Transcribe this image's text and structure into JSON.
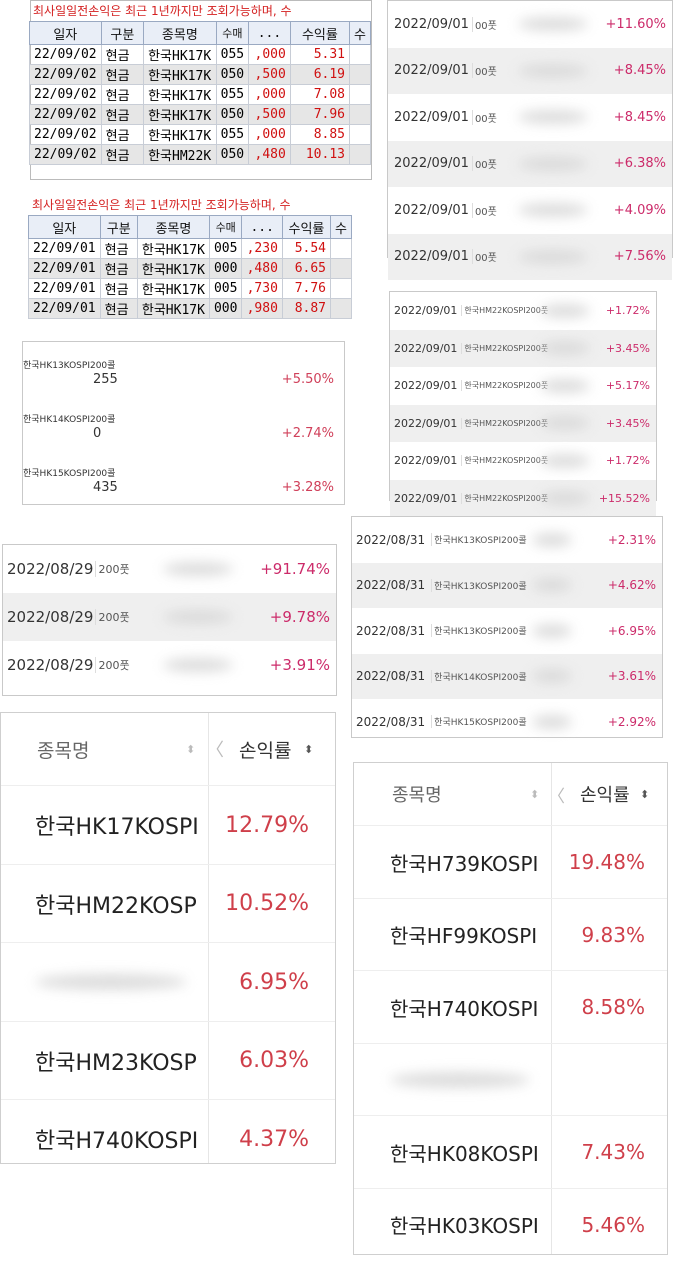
{
  "panel_a": {
    "warning": "최사일일전손익은 최근 1년까지만 조회가능하며, 수",
    "headers": [
      "일자",
      "구분",
      "종목명",
      "수매",
      "...",
      "수익률",
      "수"
    ],
    "rows": [
      {
        "date": "22/09/02",
        "type": "현금",
        "name": "한국HK17K",
        "q": "055",
        "amt": ",000",
        "rate": "5.31"
      },
      {
        "date": "22/09/02",
        "type": "현금",
        "name": "한국HK17K",
        "q": "050",
        "amt": ",500",
        "rate": "6.19"
      },
      {
        "date": "22/09/02",
        "type": "현금",
        "name": "한국HK17K",
        "q": "055",
        "amt": ",000",
        "rate": "7.08"
      },
      {
        "date": "22/09/02",
        "type": "현금",
        "name": "한국HK17K",
        "q": "050",
        "amt": ",500",
        "rate": "7.96"
      },
      {
        "date": "22/09/02",
        "type": "현금",
        "name": "한국HK17K",
        "q": "055",
        "amt": ",000",
        "rate": "8.85"
      },
      {
        "date": "22/09/02",
        "type": "현금",
        "name": "한국HM22K",
        "q": "050",
        "amt": ",480",
        "rate": "10.13"
      }
    ]
  },
  "panel_b": {
    "warning": "최사일일전손익은 최근 1년까지만 조회가능하며, 수",
    "headers": [
      "일자",
      "구분",
      "종목명",
      "수매",
      "...",
      "수익률",
      "수"
    ],
    "rows": [
      {
        "date": "22/09/01",
        "type": "현금",
        "name": "한국HK17K",
        "q": "005",
        "amt": ",230",
        "rate": "5.54"
      },
      {
        "date": "22/09/01",
        "type": "현금",
        "name": "한국HK17K",
        "q": "000",
        "amt": ",480",
        "rate": "6.65"
      },
      {
        "date": "22/09/01",
        "type": "현금",
        "name": "한국HK17K",
        "q": "005",
        "amt": ",730",
        "rate": "7.76"
      },
      {
        "date": "22/09/01",
        "type": "현금",
        "name": "한국HK17K",
        "q": "000",
        "amt": ",980",
        "rate": "8.87"
      }
    ]
  },
  "panel_c": {
    "rows": [
      {
        "date": "2022/09/01",
        "tag": "00풋",
        "pct": "+11.60%"
      },
      {
        "date": "2022/09/01",
        "tag": "00풋",
        "pct": "+8.45%"
      },
      {
        "date": "2022/09/01",
        "tag": "00풋",
        "pct": "+8.45%"
      },
      {
        "date": "2022/09/01",
        "tag": "00풋",
        "pct": "+6.38%"
      },
      {
        "date": "2022/09/01",
        "tag": "00풋",
        "pct": "+4.09%"
      },
      {
        "date": "2022/09/01",
        "tag": "00풋",
        "pct": "+7.56%"
      }
    ]
  },
  "panel_d": {
    "rows": [
      {
        "date": "2022/09/01",
        "tag": "한국HM22KOSPI200풋",
        "pct": "+1.72%"
      },
      {
        "date": "2022/09/01",
        "tag": "한국HM22KOSPI200풋",
        "pct": "+3.45%"
      },
      {
        "date": "2022/09/01",
        "tag": "한국HM22KOSPI200풋",
        "pct": "+5.17%"
      },
      {
        "date": "2022/09/01",
        "tag": "한국HM22KOSPI200풋",
        "pct": "+3.45%"
      },
      {
        "date": "2022/09/01",
        "tag": "한국HM22KOSPI200풋",
        "pct": "+1.72%"
      },
      {
        "date": "2022/09/01",
        "tag": "한국HM22KOSPI200풋",
        "pct": "+15.52%"
      }
    ]
  },
  "panel_e": {
    "rows": [
      {
        "name": "한국HK13KOSPI200콜",
        "qty": "255",
        "pct": "+5.50%"
      },
      {
        "name": "한국HK14KOSPI200콜",
        "qty": "0",
        "pct": "+2.74%"
      },
      {
        "name": "한국HK15KOSPI200콜",
        "qty": "435",
        "pct": "+3.28%"
      }
    ]
  },
  "panel_f": {
    "rows": [
      {
        "date": "2022/08/29",
        "tag": "200풋",
        "pct": "+91.74%"
      },
      {
        "date": "2022/08/29",
        "tag": "200풋",
        "pct": "+9.78%"
      },
      {
        "date": "2022/08/29",
        "tag": "200풋",
        "pct": "+3.91%"
      }
    ]
  },
  "panel_g": {
    "rows": [
      {
        "date": "2022/08/31",
        "tag": "한국HK13KOSPI200콜",
        "pct": "+2.31%"
      },
      {
        "date": "2022/08/31",
        "tag": "한국HK13KOSPI200콜",
        "pct": "+4.62%"
      },
      {
        "date": "2022/08/31",
        "tag": "한국HK13KOSPI200콜",
        "pct": "+6.95%"
      },
      {
        "date": "2022/08/31",
        "tag": "한국HK14KOSPI200콜",
        "pct": "+3.61%"
      },
      {
        "date": "2022/08/31",
        "tag": "한국HK15KOSPI200콜",
        "pct": "+2.92%"
      }
    ]
  },
  "panel_h": {
    "header_name": "종목명",
    "header_rate": "손익률",
    "rows": [
      {
        "name": "한국HK17KOSPI",
        "pct": "12.79%"
      },
      {
        "name": "한국HM22KOSP",
        "pct": "10.52%"
      },
      {
        "name": "",
        "pct": "6.95%"
      },
      {
        "name": "한국HM23KOSP",
        "pct": "6.03%"
      },
      {
        "name": "한국H740KOSPI",
        "pct": "4.37%"
      }
    ]
  },
  "panel_i": {
    "header_name": "종목명",
    "header_rate": "손익률",
    "rows": [
      {
        "name": "한국H739KOSPI",
        "pct": "19.48%"
      },
      {
        "name": "한국HF99KOSPI",
        "pct": "9.83%"
      },
      {
        "name": "한국H740KOSPI",
        "pct": "8.58%"
      },
      {
        "name": "",
        "pct": ""
      },
      {
        "name": "한국HK08KOSPI",
        "pct": "7.43%"
      },
      {
        "name": "한국HK03KOSPI",
        "pct": "5.46%"
      }
    ]
  }
}
